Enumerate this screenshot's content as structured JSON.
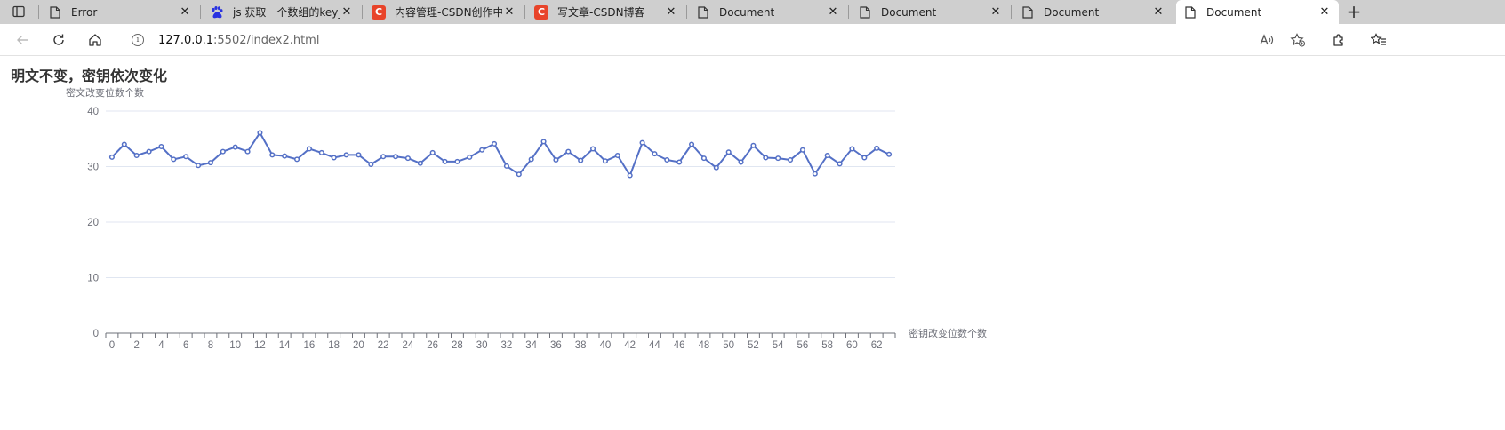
{
  "browser": {
    "tabs": [
      {
        "label": "Error",
        "icon": "document-icon",
        "active": false
      },
      {
        "label": "js 获取一个数组的key_百",
        "icon": "baidu-paw-icon",
        "active": false
      },
      {
        "label": "内容管理-CSDN创作中心",
        "icon": "csdn-icon",
        "active": false
      },
      {
        "label": "写文章-CSDN博客",
        "icon": "csdn-icon",
        "active": false
      },
      {
        "label": "Document",
        "icon": "document-icon",
        "active": false
      },
      {
        "label": "Document",
        "icon": "document-icon",
        "active": false
      },
      {
        "label": "Document",
        "icon": "document-icon",
        "active": false
      },
      {
        "label": "Document",
        "icon": "document-icon",
        "active": true
      }
    ],
    "new_tab": "+",
    "close_glyph": "✕",
    "address": {
      "host": "127.0.0.1",
      "path": ":5502/index2.html"
    },
    "info_glyph": "i"
  },
  "page": {
    "title": "明文不变，密钥依次变化"
  },
  "chart_data": {
    "type": "line",
    "title": "",
    "xlabel": "密钥改变位数个数",
    "ylabel": "密文改变位数个数",
    "x": [
      0,
      1,
      2,
      3,
      4,
      5,
      6,
      7,
      8,
      9,
      10,
      11,
      12,
      13,
      14,
      15,
      16,
      17,
      18,
      19,
      20,
      21,
      22,
      23,
      24,
      25,
      26,
      27,
      28,
      29,
      30,
      31,
      32,
      33,
      34,
      35,
      36,
      37,
      38,
      39,
      40,
      41,
      42,
      43,
      44,
      45,
      46,
      47,
      48,
      49,
      50,
      51,
      52,
      53,
      54,
      55,
      56,
      57,
      58,
      59,
      60,
      61,
      62,
      63
    ],
    "y": [
      31.7,
      34,
      32,
      32.7,
      33.6,
      31.3,
      31.8,
      30.2,
      30.7,
      32.7,
      33.5,
      32.7,
      36.1,
      32.1,
      31.9,
      31.3,
      33.2,
      32.5,
      31.6,
      32.1,
      32.1,
      30.4,
      31.8,
      31.8,
      31.5,
      30.6,
      32.5,
      30.9,
      30.9,
      31.7,
      33,
      34.1,
      30.1,
      28.6,
      31.3,
      34.5,
      31.2,
      32.7,
      31.1,
      33.2,
      31,
      32,
      28.4,
      34.3,
      32.3,
      31.2,
      30.8,
      34,
      31.5,
      29.8,
      32.6,
      30.8,
      33.8,
      31.6,
      31.5,
      31.2,
      33,
      28.7,
      32,
      30.5,
      33.2,
      31.6,
      33.3,
      32.2
    ],
    "xticks": [
      "0",
      "2",
      "4",
      "6",
      "8",
      "10",
      "12",
      "14",
      "16",
      "18",
      "20",
      "22",
      "24",
      "26",
      "28",
      "30",
      "32",
      "34",
      "36",
      "38",
      "40",
      "42",
      "44",
      "46",
      "48",
      "50",
      "52",
      "54",
      "56",
      "58",
      "60",
      "62"
    ],
    "yticks": [
      "0",
      "10",
      "20",
      "30",
      "40"
    ],
    "ylim": [
      0,
      40
    ],
    "xlim": [
      0,
      63
    ],
    "grid": true,
    "legend": false,
    "colors": {
      "series": "#5470c6",
      "grid": "#e0e6f1",
      "axis": "#6e7079",
      "label": "#6e7079"
    }
  }
}
